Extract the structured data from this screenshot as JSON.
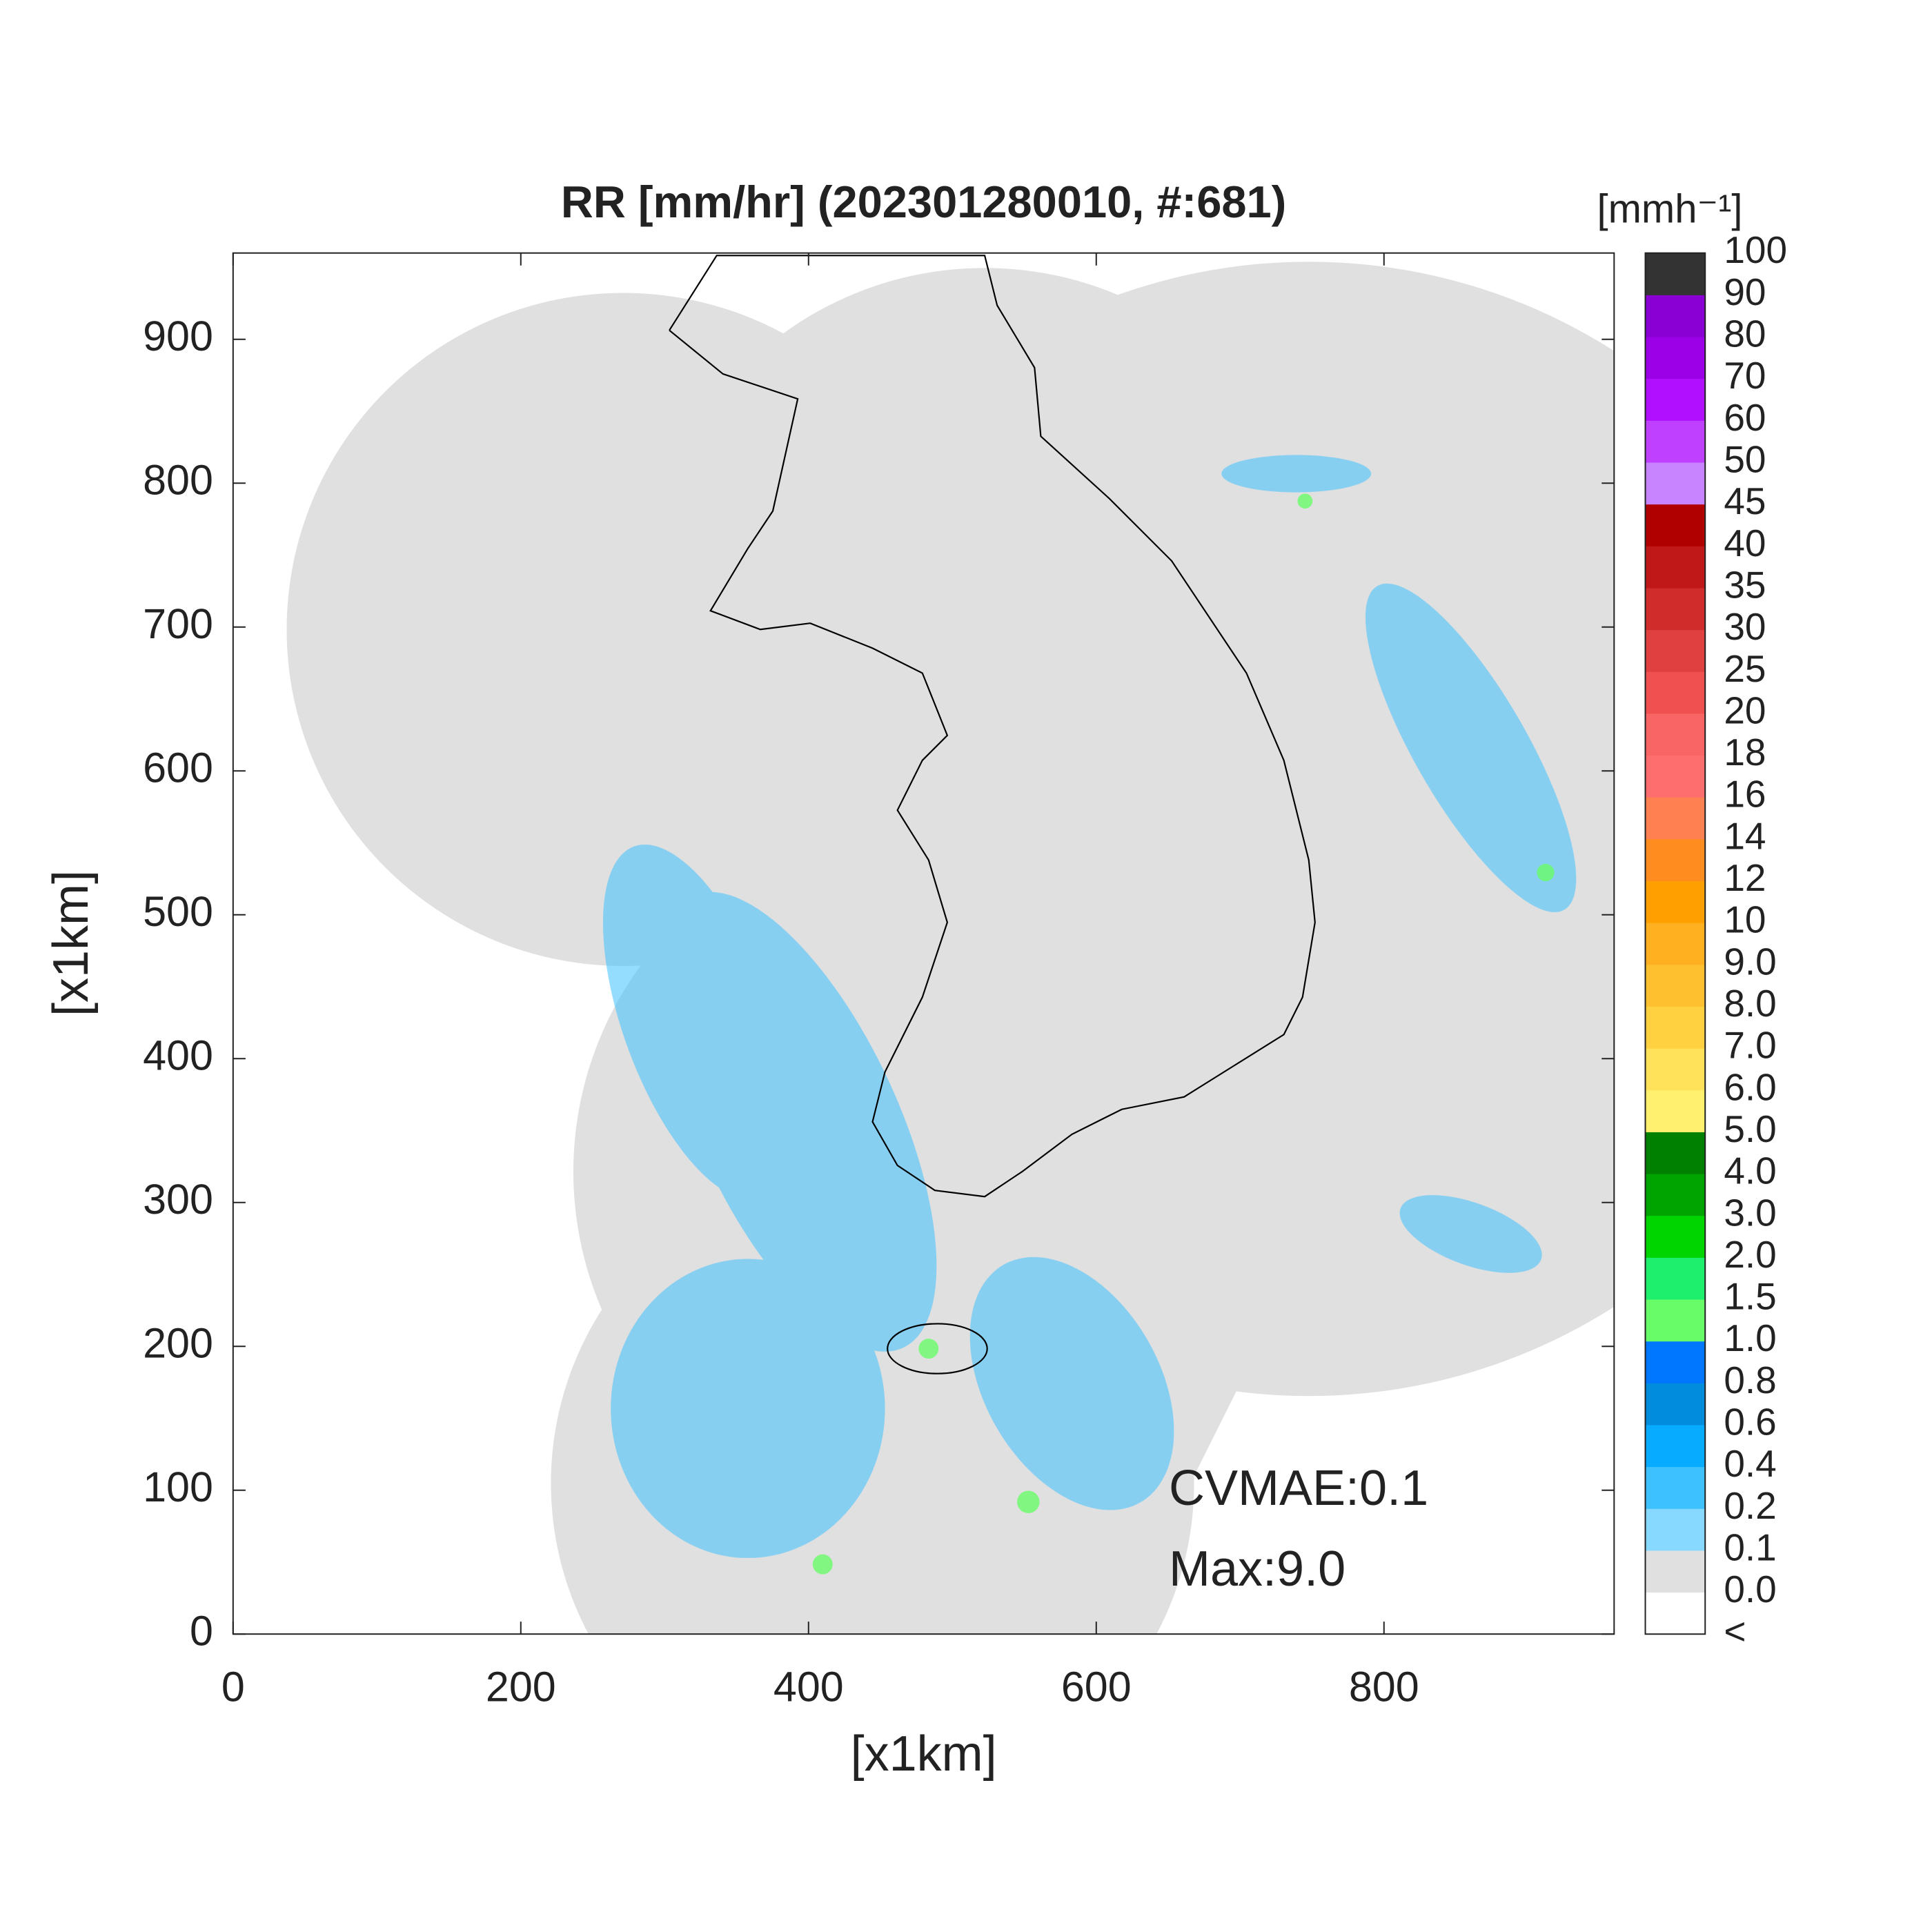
{
  "chart_data": {
    "type": "heatmap",
    "title": "RR [mm/hr] (202301280010, #:681)",
    "xlabel": "[x1km]",
    "ylabel": "[x1km]",
    "xlim": [
      0,
      960
    ],
    "ylim": [
      0,
      960
    ],
    "xticks": [
      0,
      200,
      400,
      600,
      800
    ],
    "yticks": [
      0,
      100,
      200,
      300,
      400,
      500,
      600,
      700,
      800,
      900
    ],
    "annotations": [
      "CVMAE:0.1",
      "Max:9.0"
    ],
    "colorbar": {
      "title": "[mmh⁻¹]",
      "labels": [
        "<",
        "0.0",
        "0.1",
        "0.2",
        "0.4",
        "0.6",
        "0.8",
        "1.0",
        "1.5",
        "2.0",
        "3.0",
        "4.0",
        "5.0",
        "6.0",
        "7.0",
        "8.0",
        "9.0",
        "10",
        "12",
        "14",
        "16",
        "18",
        "20",
        "25",
        "30",
        "35",
        "40",
        "45",
        "50",
        "60",
        "70",
        "80",
        "90",
        "100"
      ],
      "colors": [
        "#ffffff",
        "#e0e0e0",
        "#87d9ff",
        "#3ec1ff",
        "#07abff",
        "#008dde",
        "#0077ff",
        "#69fc69",
        "#1ef06e",
        "#00d500",
        "#00a400",
        "#008000",
        "#fff06e",
        "#ffe15a",
        "#ffd040",
        "#ffc030",
        "#ffb020",
        "#ffa000",
        "#ff8c1e",
        "#ff8050",
        "#ff6e6e",
        "#f96464",
        "#f05050",
        "#e04040",
        "#d02c2c",
        "#c01818",
        "#b00000",
        "#c884ff",
        "#c040ff",
        "#b010ff",
        "#9b00e6",
        "#8a00d4",
        "#333333"
      ]
    }
  }
}
